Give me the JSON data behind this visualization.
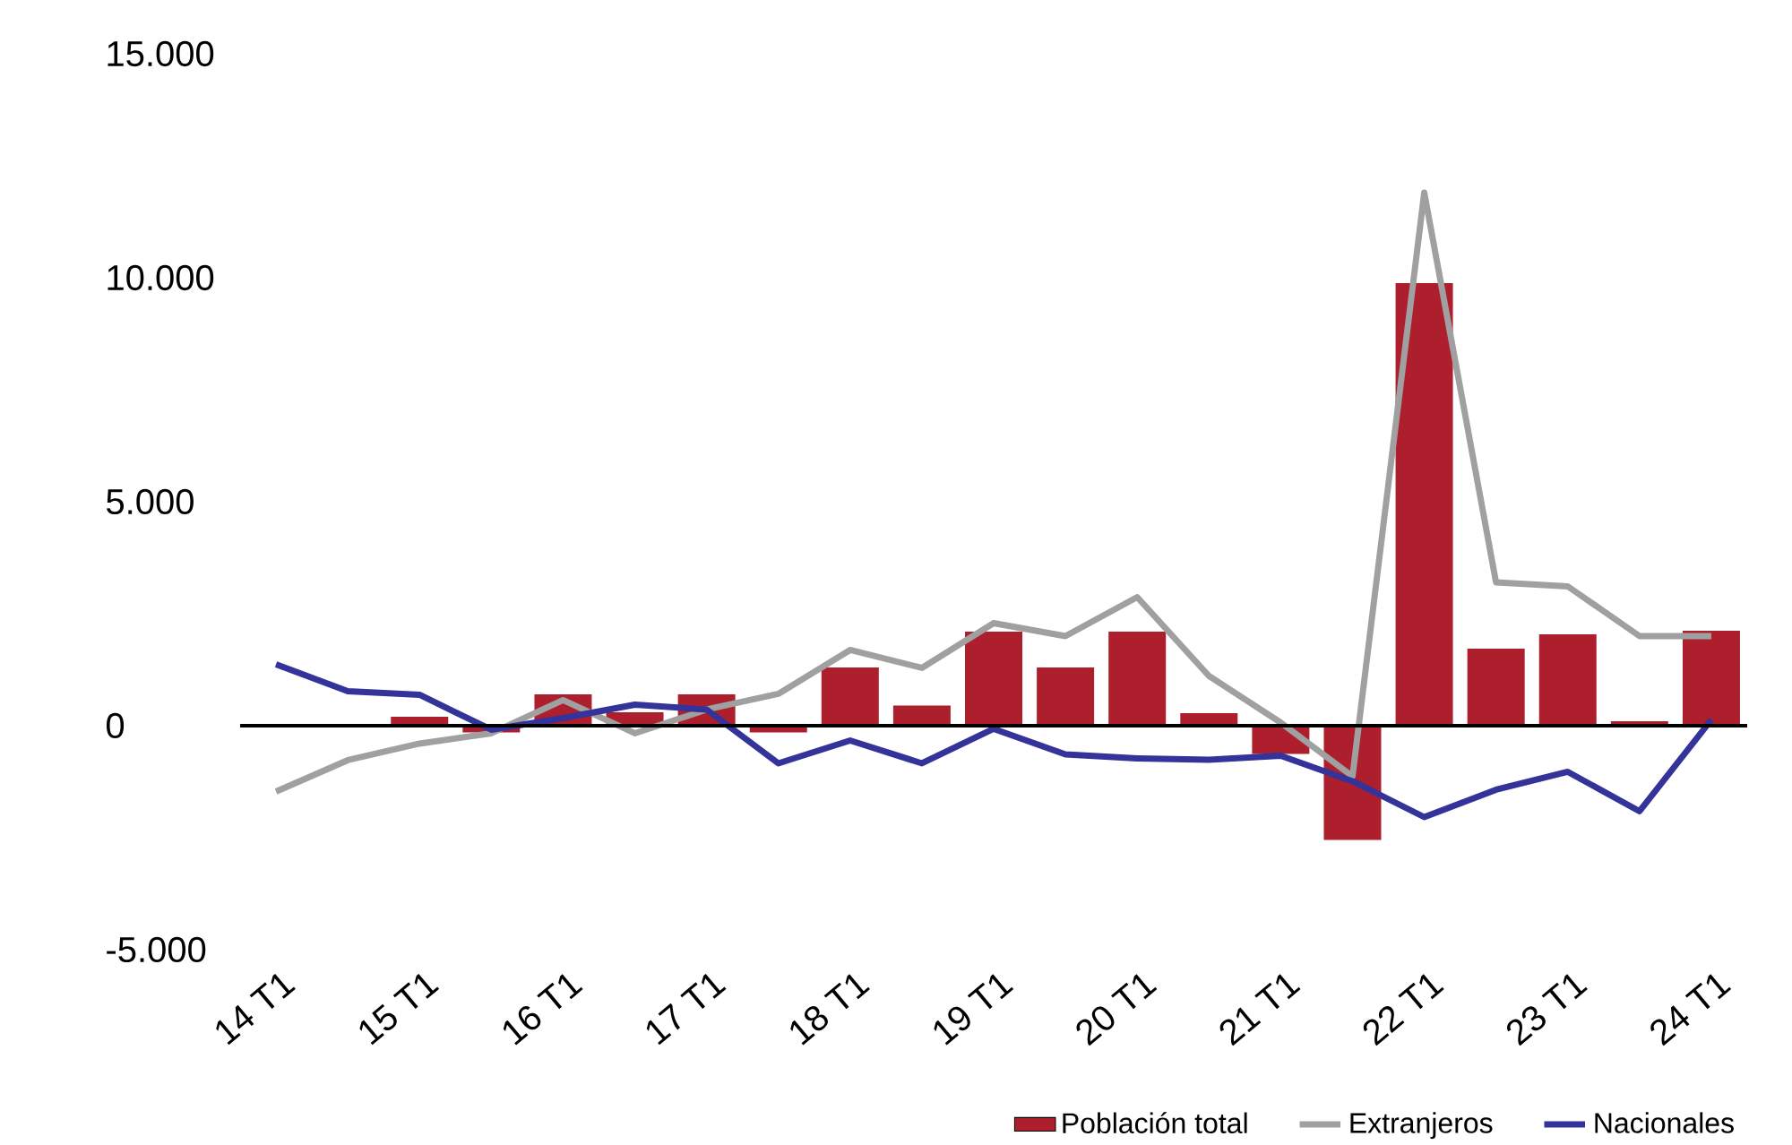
{
  "chart_data": {
    "type": "bar",
    "categories": [
      "14 T1",
      null,
      "15 T1",
      null,
      "16 T1",
      null,
      "17 T1",
      null,
      "18 T1",
      null,
      "19 T1",
      null,
      "20 T1",
      null,
      "21 T1",
      null,
      "22 T1",
      null,
      "23 T1",
      null,
      "24 T1"
    ],
    "series": [
      {
        "name": "Población total",
        "color": "#ae1f2e",
        "values": [
          0,
          0,
          200,
          -150,
          700,
          300,
          700,
          -150,
          1300,
          450,
          2100,
          1300,
          2100,
          280,
          -630,
          -2550,
          9880,
          1720,
          2040,
          100,
          2120
        ]
      },
      {
        "name": "Extranjeros",
        "type": "line",
        "color": "#a0a0a0",
        "values": [
          -1470,
          -770,
          -400,
          -170,
          570,
          -170,
          360,
          710,
          1690,
          1290,
          2290,
          2000,
          2870,
          1110,
          70,
          -1130,
          11900,
          3200,
          3110,
          2000,
          2000
        ]
      },
      {
        "name": "Nacionales",
        "type": "line",
        "color": "#333399",
        "values": [
          1370,
          770,
          690,
          -90,
          170,
          470,
          360,
          -840,
          -330,
          -840,
          -70,
          -640,
          -730,
          -760,
          -670,
          -1240,
          -2040,
          -1430,
          -1030,
          -1910,
          130
        ]
      }
    ],
    "ylim": [
      -5000,
      15000
    ],
    "yticks": [
      {
        "value": -5000,
        "label": "-5.000"
      },
      {
        "value": 0,
        "label": "0"
      },
      {
        "value": 5000,
        "label": "5.000"
      },
      {
        "value": 10000,
        "label": "10.000"
      },
      {
        "value": 15000,
        "label": "15.000"
      }
    ],
    "legend": "bottom"
  }
}
